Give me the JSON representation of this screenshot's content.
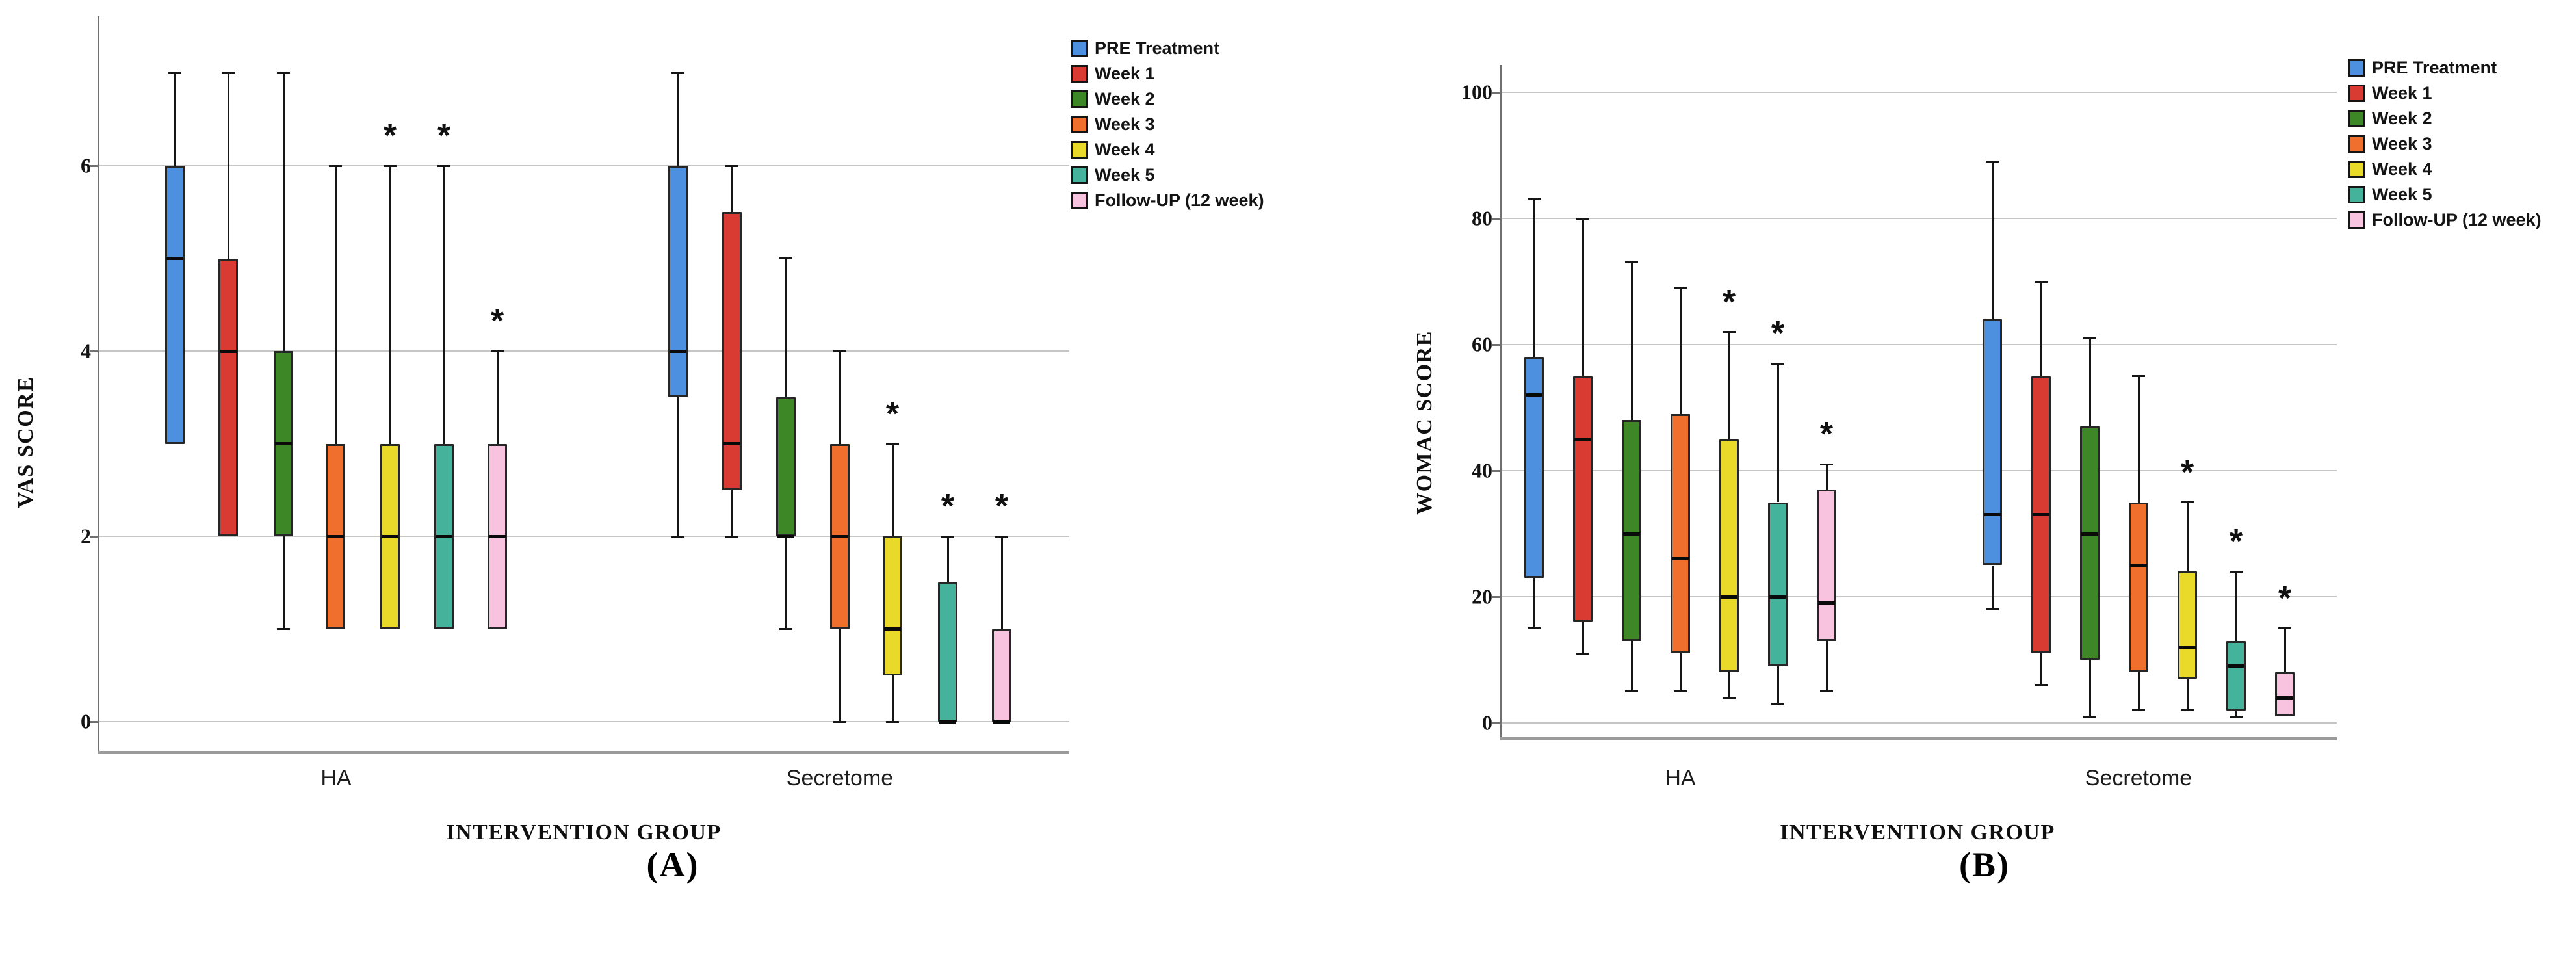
{
  "significance_marker": "*",
  "legend": {
    "items": [
      {
        "label": "PRE Treatment",
        "color": "#4E90E0"
      },
      {
        "label": "Week 1",
        "color": "#D93A32"
      },
      {
        "label": "Week 2",
        "color": "#3E8727"
      },
      {
        "label": "Week 3",
        "color": "#F06F2D"
      },
      {
        "label": "Week 4",
        "color": "#E9DA29"
      },
      {
        "label": "Week 5",
        "color": "#45B39B"
      },
      {
        "label": "Follow-UP (12 week)",
        "color": "#F7C3DF"
      }
    ]
  },
  "chart_data": [
    {
      "type": "boxplot",
      "panel": "A",
      "caption": "(A)",
      "ylabel": "VAS SCORE",
      "xlabel": "INTERVENTION GROUP",
      "categories": [
        "HA",
        "Secretome"
      ],
      "yticks": [
        0,
        2,
        4,
        6
      ],
      "ylim": [
        0,
        7.3
      ],
      "grid": "horizontal",
      "legend_position": "outside-top-right",
      "series": [
        {
          "name": "PRE Treatment",
          "color": "#4E90E0",
          "values": [
            {
              "low": 3,
              "q1": 3,
              "median": 5,
              "q3": 6,
              "high": 7,
              "sig": false
            },
            {
              "low": 2,
              "q1": 3.5,
              "median": 4,
              "q3": 6,
              "high": 7,
              "sig": false
            }
          ]
        },
        {
          "name": "Week 1",
          "color": "#D93A32",
          "values": [
            {
              "low": 2,
              "q1": 2,
              "median": 4,
              "q3": 5,
              "high": 7,
              "sig": false
            },
            {
              "low": 2,
              "q1": 2.5,
              "median": 3,
              "q3": 5.5,
              "high": 6,
              "sig": false
            }
          ]
        },
        {
          "name": "Week 2",
          "color": "#3E8727",
          "values": [
            {
              "low": 1,
              "q1": 2,
              "median": 3,
              "q3": 4,
              "high": 7,
              "sig": false
            },
            {
              "low": 1,
              "q1": 2,
              "median": 2,
              "q3": 3.5,
              "high": 5,
              "sig": false
            }
          ]
        },
        {
          "name": "Week 3",
          "color": "#F06F2D",
          "values": [
            {
              "low": 1,
              "q1": 1,
              "median": 2,
              "q3": 3,
              "high": 6,
              "sig": false
            },
            {
              "low": 0,
              "q1": 1,
              "median": 2,
              "q3": 3,
              "high": 4,
              "sig": false
            }
          ]
        },
        {
          "name": "Week 4",
          "color": "#E9DA29",
          "values": [
            {
              "low": 1,
              "q1": 1,
              "median": 2,
              "q3": 3,
              "high": 6,
              "sig": true
            },
            {
              "low": 0,
              "q1": 0.5,
              "median": 1,
              "q3": 2,
              "high": 3,
              "sig": true
            }
          ]
        },
        {
          "name": "Week 5",
          "color": "#45B39B",
          "values": [
            {
              "low": 1,
              "q1": 1,
              "median": 2,
              "q3": 3,
              "high": 6,
              "sig": true
            },
            {
              "low": 0,
              "q1": 0,
              "median": 0,
              "q3": 1.5,
              "high": 2,
              "sig": true
            }
          ]
        },
        {
          "name": "Follow-UP (12 week)",
          "color": "#F7C3DF",
          "values": [
            {
              "low": 1,
              "q1": 1,
              "median": 2,
              "q3": 3,
              "high": 4,
              "sig": true
            },
            {
              "low": 0,
              "q1": 0,
              "median": 0,
              "q3": 1,
              "high": 2,
              "sig": true
            }
          ]
        }
      ]
    },
    {
      "type": "boxplot",
      "panel": "B",
      "caption": "(B)",
      "ylabel": "WOMAC SCORE",
      "xlabel": "INTERVENTION GROUP",
      "categories": [
        "HA",
        "Secretome"
      ],
      "yticks": [
        0,
        20,
        40,
        60,
        80,
        100
      ],
      "ylim": [
        0,
        104
      ],
      "grid": "horizontal",
      "legend_position": "outside-top-right",
      "series": [
        {
          "name": "PRE Treatment",
          "color": "#4E90E0",
          "values": [
            {
              "low": 15,
              "q1": 23,
              "median": 52,
              "q3": 58,
              "high": 83,
              "sig": false
            },
            {
              "low": 18,
              "q1": 25,
              "median": 33,
              "q3": 64,
              "high": 89,
              "sig": false
            }
          ]
        },
        {
          "name": "Week 1",
          "color": "#D93A32",
          "values": [
            {
              "low": 11,
              "q1": 16,
              "median": 45,
              "q3": 55,
              "high": 80,
              "sig": false
            },
            {
              "low": 6,
              "q1": 11,
              "median": 33,
              "q3": 55,
              "high": 70,
              "sig": false
            }
          ]
        },
        {
          "name": "Week 2",
          "color": "#3E8727",
          "values": [
            {
              "low": 5,
              "q1": 13,
              "median": 30,
              "q3": 48,
              "high": 73,
              "sig": false
            },
            {
              "low": 1,
              "q1": 10,
              "median": 30,
              "q3": 47,
              "high": 61,
              "sig": false
            }
          ]
        },
        {
          "name": "Week 3",
          "color": "#F06F2D",
          "values": [
            {
              "low": 5,
              "q1": 11,
              "median": 26,
              "q3": 49,
              "high": 69,
              "sig": false
            },
            {
              "low": 2,
              "q1": 8,
              "median": 25,
              "q3": 35,
              "high": 55,
              "sig": false
            }
          ]
        },
        {
          "name": "Week 4",
          "color": "#E9DA29",
          "values": [
            {
              "low": 4,
              "q1": 8,
              "median": 20,
              "q3": 45,
              "high": 62,
              "sig": true
            },
            {
              "low": 2,
              "q1": 7,
              "median": 12,
              "q3": 24,
              "high": 35,
              "sig": true
            }
          ]
        },
        {
          "name": "Week 5",
          "color": "#45B39B",
          "values": [
            {
              "low": 3,
              "q1": 9,
              "median": 20,
              "q3": 35,
              "high": 57,
              "sig": true
            },
            {
              "low": 1,
              "q1": 2,
              "median": 9,
              "q3": 13,
              "high": 24,
              "sig": true
            }
          ]
        },
        {
          "name": "Follow-UP (12 week)",
          "color": "#F7C3DF",
          "values": [
            {
              "low": 5,
              "q1": 13,
              "median": 19,
              "q3": 37,
              "high": 41,
              "sig": true
            },
            {
              "low": 1,
              "q1": 1,
              "median": 4,
              "q3": 8,
              "high": 15,
              "sig": true
            }
          ]
        }
      ]
    }
  ]
}
